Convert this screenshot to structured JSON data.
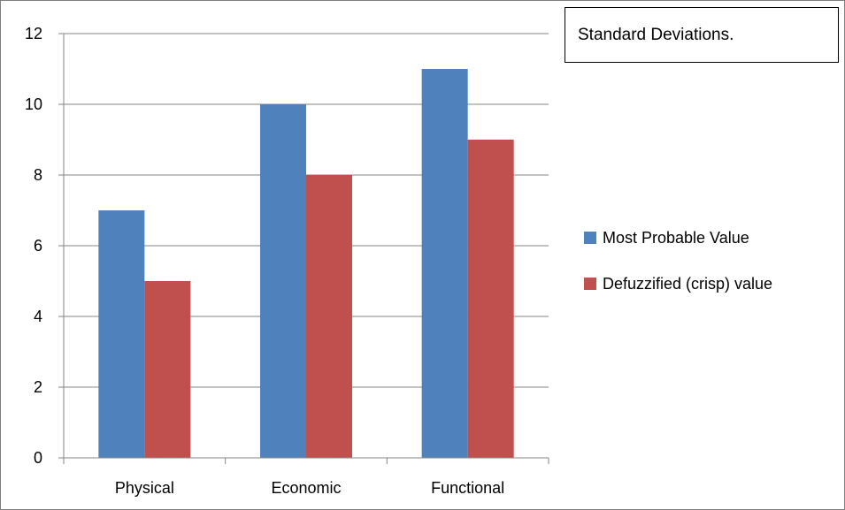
{
  "chart_data": {
    "type": "bar",
    "title": "Standard Deviations.",
    "categories": [
      "Physical",
      "Economic",
      "Functional"
    ],
    "series": [
      {
        "name": "Most Probable Value",
        "color": "#4f81bd",
        "values": [
          7,
          10,
          11
        ]
      },
      {
        "name": "Defuzzified (crisp) value",
        "color": "#c0504d",
        "values": [
          5,
          8,
          9
        ]
      }
    ],
    "ylim": [
      0,
      12
    ],
    "yticks": [
      0,
      2,
      4,
      6,
      8,
      10,
      12
    ],
    "grid": true,
    "legend_position": "right"
  }
}
